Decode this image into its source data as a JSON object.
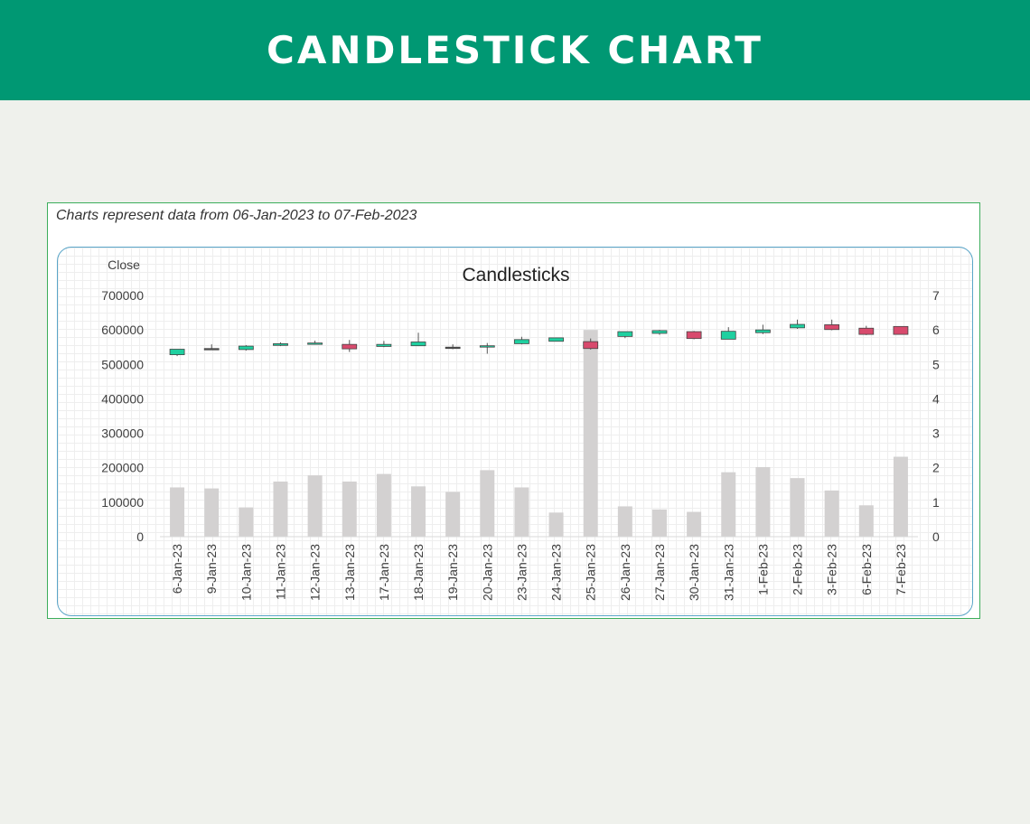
{
  "banner": {
    "title": "CANDLESTICK CHART"
  },
  "panel": {
    "caption": "Charts represent data from 06-Jan-2023 to 07-Feb-2023"
  },
  "colors": {
    "banner_bg": "#009873",
    "up": "#1fd0a0",
    "down": "#d84a6d",
    "volume": "#d3d1d1",
    "wick": "#555555"
  },
  "chart_data": {
    "type": "candlestick",
    "title": "Candlesticks",
    "ylabel": "Close",
    "ylim": [
      0,
      700000
    ],
    "y_ticks": [
      "700000",
      "600000",
      "500000",
      "400000",
      "300000",
      "200000",
      "100000",
      "0"
    ],
    "y2lim": [
      0,
      7
    ],
    "y2_ticks": [
      "7",
      "6",
      "5",
      "4",
      "3",
      "2",
      "1",
      "0"
    ],
    "categories": [
      "6-Jan-23",
      "9-Jan-23",
      "10-Jan-23",
      "11-Jan-23",
      "12-Jan-23",
      "13-Jan-23",
      "17-Jan-23",
      "18-Jan-23",
      "19-Jan-23",
      "20-Jan-23",
      "23-Jan-23",
      "24-Jan-23",
      "25-Jan-23",
      "26-Jan-23",
      "27-Jan-23",
      "30-Jan-23",
      "31-Jan-23",
      "1-Feb-23",
      "2-Feb-23",
      "3-Feb-23",
      "6-Feb-23",
      "7-Feb-23"
    ],
    "volume": [
      143000,
      140000,
      85000,
      160000,
      178000,
      160000,
      182000,
      146000,
      130000,
      193000,
      143000,
      70000,
      600000,
      88000,
      79000,
      72000,
      187000,
      202000,
      170000,
      134000,
      91000,
      232000
    ],
    "open": [
      5.28,
      5.46,
      5.43,
      5.55,
      5.6,
      5.58,
      5.52,
      5.54,
      5.5,
      5.52,
      5.6,
      5.67,
      5.66,
      5.81,
      5.9,
      5.95,
      5.73,
      5.92,
      6.06,
      6.15,
      6.05,
      6.1
    ],
    "close": [
      5.44,
      5.46,
      5.53,
      5.6,
      5.62,
      5.45,
      5.58,
      5.65,
      5.5,
      5.54,
      5.72,
      5.77,
      5.46,
      5.95,
      5.98,
      5.75,
      5.96,
      6.0,
      6.16,
      6.01,
      5.87,
      5.87
    ],
    "high": [
      5.44,
      5.58,
      5.56,
      5.64,
      5.69,
      5.71,
      5.68,
      5.92,
      5.58,
      5.62,
      5.8,
      5.77,
      5.75,
      5.95,
      6.0,
      5.97,
      6.08,
      6.15,
      6.3,
      6.3,
      6.12,
      6.1
    ],
    "low": [
      5.24,
      5.44,
      5.4,
      5.53,
      5.57,
      5.36,
      5.5,
      5.53,
      5.44,
      5.31,
      5.58,
      5.67,
      5.43,
      5.76,
      5.86,
      5.73,
      5.73,
      5.88,
      6.03,
      5.99,
      5.85,
      5.87
    ]
  }
}
